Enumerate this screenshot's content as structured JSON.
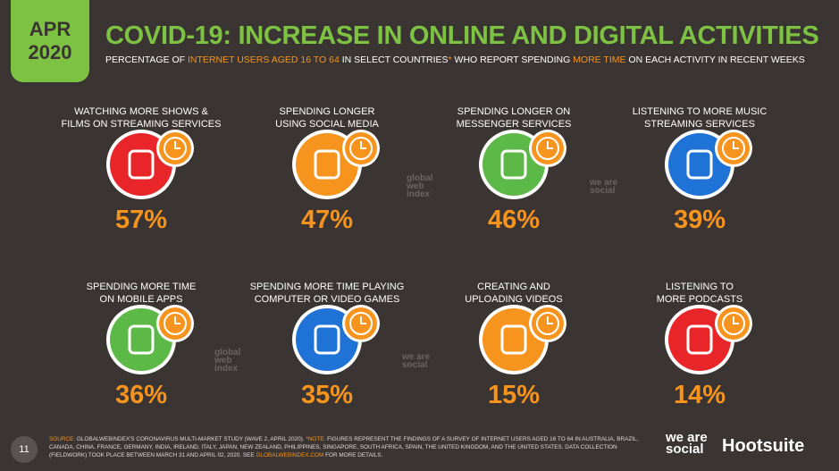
{
  "header": {
    "date": [
      "APR",
      "2020"
    ],
    "title": "COVID-19: INCREASE IN ONLINE AND DIGITAL ACTIVITIES",
    "subtitle": [
      {
        "text": "PERCENTAGE OF ",
        "highlight": false
      },
      {
        "text": "INTERNET USERS AGED 16 TO 64",
        "highlight": true
      },
      {
        "text": " IN SELECT COUNTRIES",
        "highlight": false
      },
      {
        "text": "*",
        "highlight": true
      },
      {
        "text": " WHO REPORT SPENDING ",
        "highlight": false
      },
      {
        "text": "MORE TIME",
        "highlight": true
      },
      {
        "text": " ON EACH ACTIVITY IN RECENT WEEKS",
        "highlight": false
      }
    ]
  },
  "items": [
    {
      "label": [
        "WATCHING MORE SHOWS &",
        "FILMS ON STREAMING SERVICES"
      ],
      "value": "57%",
      "color": "#e8262a"
    },
    {
      "label": [
        "SPENDING LONGER",
        "USING SOCIAL MEDIA"
      ],
      "value": "47%",
      "color": "#f7941d"
    },
    {
      "label": [
        "SPENDING LONGER ON",
        "MESSENGER SERVICES"
      ],
      "value": "46%",
      "color": "#5cb947"
    },
    {
      "label": [
        "LISTENING TO MORE MUSIC",
        "STREAMING SERVICES"
      ],
      "value": "39%",
      "color": "#1f72d6"
    },
    {
      "label": [
        "SPENDING MORE TIME",
        "ON MOBILE APPS"
      ],
      "value": "36%",
      "color": "#5cb947"
    },
    {
      "label": [
        "SPENDING MORE TIME PLAYING",
        "COMPUTER OR VIDEO GAMES"
      ],
      "value": "35%",
      "color": "#1f72d6"
    },
    {
      "label": [
        "CREATING AND",
        "UPLOADING VIDEOS"
      ],
      "value": "15%",
      "color": "#f7941d"
    },
    {
      "label": [
        "LISTENING TO",
        "MORE PODCASTS"
      ],
      "value": "14%",
      "color": "#e8262a"
    }
  ],
  "watermarks": [
    "global web index",
    "we are social",
    "global web index",
    "we are social"
  ],
  "footer": {
    "page": "11",
    "source": [
      {
        "text": "SOURCE:",
        "highlight": true
      },
      {
        "text": " GLOBALWEBINDEX'S CORONAVIRUS MULTI-MARKET STUDY (WAVE 2, APRIL 2020). ",
        "highlight": false
      },
      {
        "text": "*NOTE:",
        "highlight": true
      },
      {
        "text": " FIGURES REPRESENT THE FINDINGS OF A SURVEY OF INTERNET USERS AGED 16 TO 64 IN AUSTRALIA, BRAZIL, CANADA, CHINA, FRANCE, GERMANY, INDIA, IRELAND, ITALY, JAPAN, NEW ZEALAND, PHILIPPINES, SINGAPORE, SOUTH AFRICA, SPAIN, THE UNITED KINGDOM, AND THE UNITED STATES. DATA COLLECTION (FIELDWORK) TOOK PLACE BETWEEN MARCH 31 AND APRIL 02, 2020. SEE ",
        "highlight": false
      },
      {
        "text": "GLOBALWEBINDEX.COM",
        "highlight": true
      },
      {
        "text": " FOR MORE DETAILS.",
        "highlight": false
      }
    ],
    "logos": [
      "we are social",
      "Hootsuite"
    ]
  }
}
